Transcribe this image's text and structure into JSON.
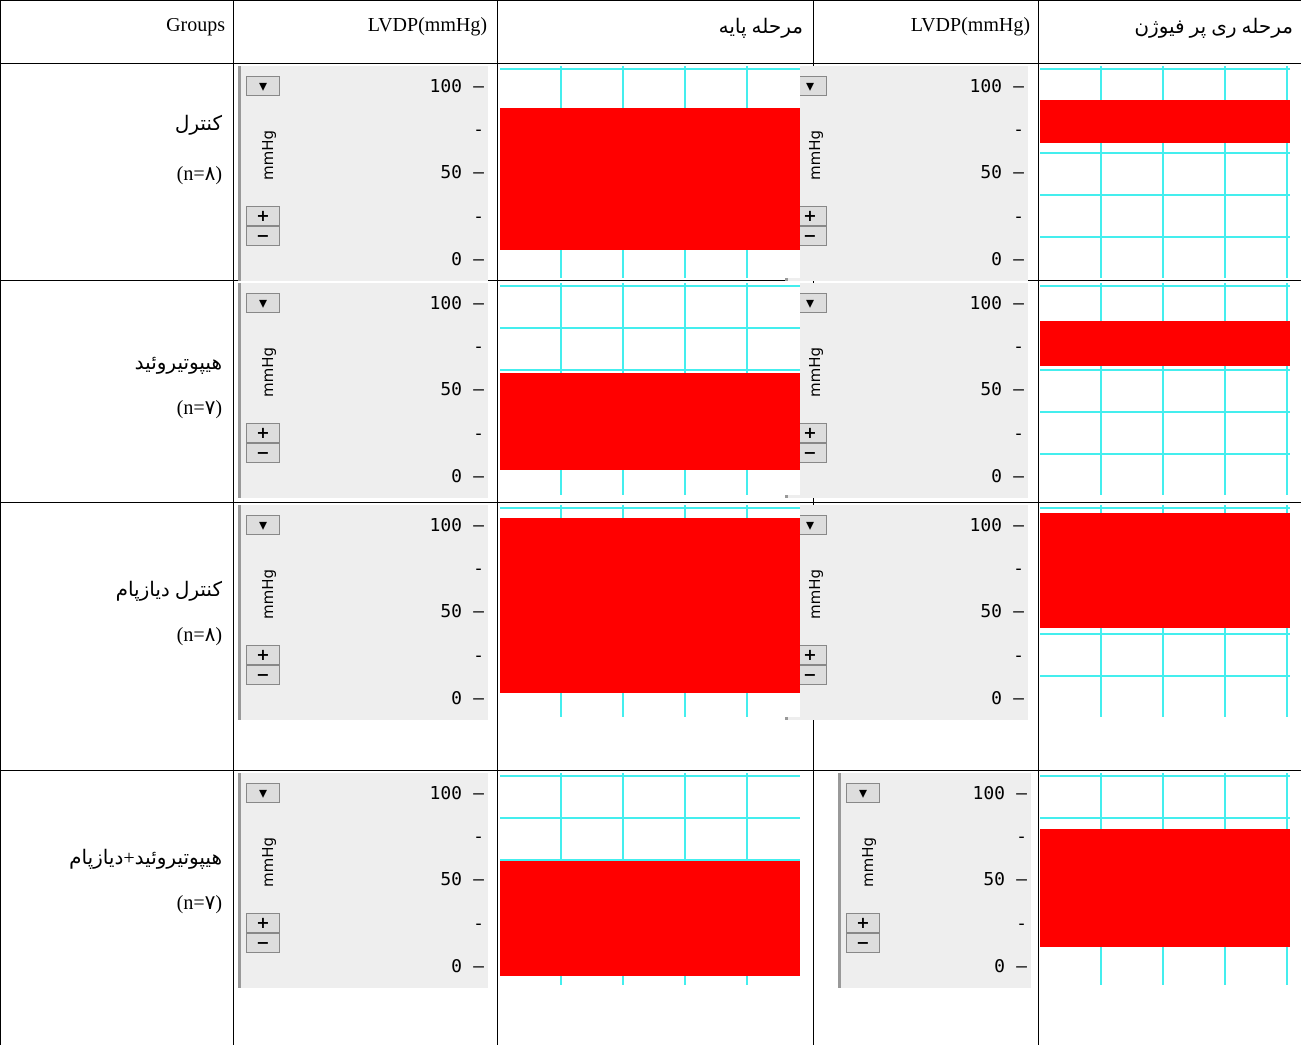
{
  "table": {
    "header": [
      "Groups",
      "LVDP(mmHg)",
      "مرحله پایه",
      "LVDP(mmHg)",
      "مرحله ری پر فیوژن"
    ],
    "rows": [
      {
        "group": "کنترل",
        "n": "(n=۸)"
      },
      {
        "group": "هیپوتیروئید",
        "n": "(n=۷)"
      },
      {
        "group": "کنترل دیازپام",
        "n": "(n=۸)"
      },
      {
        "group": "هیپوتیروئید+دیازپام",
        "n": "(n=۷)"
      }
    ]
  },
  "panel": {
    "unit": "mmHg",
    "ticks": [
      "100",
      "50",
      "0"
    ]
  }
}
